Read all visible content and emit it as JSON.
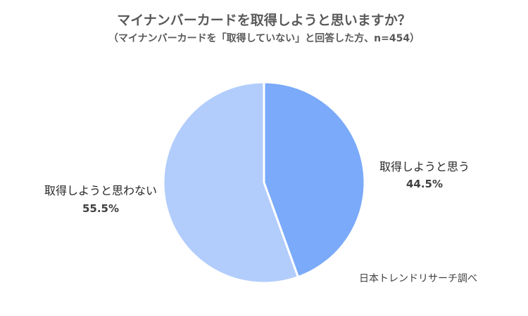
{
  "title": "マイナンバーカードを取得しようと思いますか？",
  "subtitle": "（マイナンバーカードを「取得していない」と回答した方、n=454）",
  "source": "日本トレンドリサーチ調べ",
  "colors": {
    "slice_yes": "#7aaaf9",
    "slice_no": "#b2cdfc",
    "separator": "#ffffff"
  },
  "chart_data": {
    "type": "pie",
    "title": "マイナンバーカードを取得しようと思いますか？",
    "subtitle": "（マイナンバーカードを「取得していない」と回答した方、n=454）",
    "n": 454,
    "start_angle": "12 o'clock",
    "direction": "clockwise",
    "slices": [
      {
        "label": "取得しようと思う",
        "value": 44.5,
        "value_label": "44.5%"
      },
      {
        "label": "取得しようと思わない",
        "value": 55.5,
        "value_label": "55.5%"
      }
    ]
  }
}
